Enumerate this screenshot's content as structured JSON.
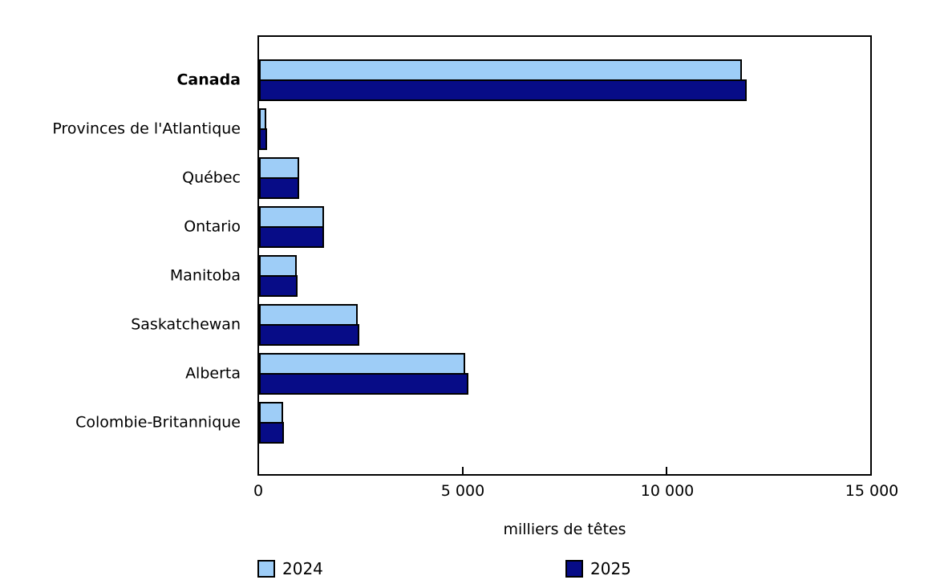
{
  "chart_data": {
    "type": "bar",
    "orientation": "horizontal",
    "xlabel": "milliers de têtes",
    "xlim": [
      0,
      15000
    ],
    "xticks": [
      {
        "value": 0,
        "label": "0"
      },
      {
        "value": 5000,
        "label": "5 000"
      },
      {
        "value": 10000,
        "label": "10 000"
      },
      {
        "value": 15000,
        "label": "15 000"
      }
    ],
    "categories": [
      "Canada",
      "Provinces de l'Atlantique",
      "Québec",
      "Ontario",
      "Manitoba",
      "Saskatchewan",
      "Alberta",
      "Colombie-Britannique"
    ],
    "emphasized_category": "Canada",
    "series": [
      {
        "name": "2024",
        "color": "#9ECDF7",
        "values": [
          11850,
          180,
          990,
          1590,
          920,
          2420,
          5060,
          590
        ]
      },
      {
        "name": "2025",
        "color": "#070C87",
        "values": [
          11960,
          200,
          980,
          1600,
          950,
          2460,
          5140,
          605
        ]
      }
    ],
    "bar_border_color": "#000000",
    "legend_position": "bottom",
    "grid": false
  }
}
